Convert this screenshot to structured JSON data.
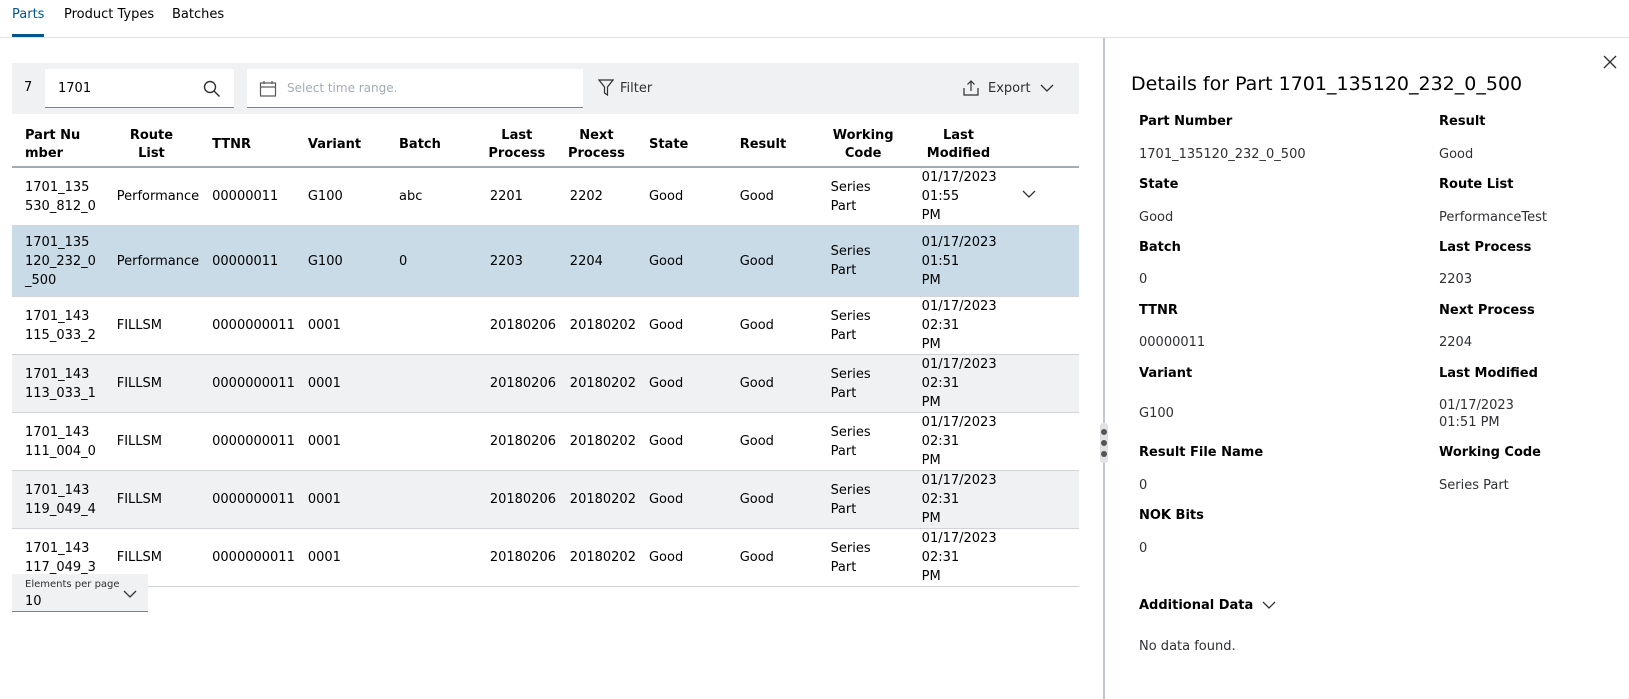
{
  "tabs": [
    {
      "label": "Parts",
      "active": true
    },
    {
      "label": "Product Types",
      "active": false
    },
    {
      "label": "Batches",
      "active": false
    }
  ],
  "toolbar": {
    "count": "7",
    "search_value": "1701",
    "date_placeholder": "Select time range.",
    "filter_label": "Filter",
    "export_label": "Export"
  },
  "table": {
    "headers": [
      "Part Nu mber",
      "Route List",
      "TTNR",
      "Variant",
      "Batch",
      "Last Process",
      "Next Process",
      "State",
      "Result",
      "Working Code",
      "Last Modified"
    ],
    "rows": [
      {
        "part": "1701_135 530_812_0",
        "route": "Performance",
        "ttnr": "00000011",
        "variant": "G100",
        "batch": "abc",
        "last": "2201",
        "next": "2202",
        "state": "Good",
        "result": "Good",
        "code": "Series Part",
        "modified": "01/17/2023 01:55 PM"
      },
      {
        "part": "1701_135 120_232_0 _500",
        "route": "Performance",
        "ttnr": "00000011",
        "variant": "G100",
        "batch": "0",
        "last": "2203",
        "next": "2204",
        "state": "Good",
        "result": "Good",
        "code": "Series Part",
        "modified": "01/17/2023 01:51 PM"
      },
      {
        "part": "1701_143 115_033_2",
        "route": "FILLSM",
        "ttnr": "0000000011",
        "variant": "0001",
        "batch": "",
        "last": "20180206",
        "next": "20180202",
        "state": "Good",
        "result": "Good",
        "code": "Series Part",
        "modified": "01/17/2023 02:31 PM"
      },
      {
        "part": "1701_143 113_033_1",
        "route": "FILLSM",
        "ttnr": "0000000011",
        "variant": "0001",
        "batch": "",
        "last": "20180206",
        "next": "20180202",
        "state": "Good",
        "result": "Good",
        "code": "Series Part",
        "modified": "01/17/2023 02:31 PM"
      },
      {
        "part": "1701_143 111_004_0",
        "route": "FILLSM",
        "ttnr": "0000000011",
        "variant": "0001",
        "batch": "",
        "last": "20180206",
        "next": "20180202",
        "state": "Good",
        "result": "Good",
        "code": "Series Part",
        "modified": "01/17/2023 02:31 PM"
      },
      {
        "part": "1701_143 119_049_4",
        "route": "FILLSM",
        "ttnr": "0000000011",
        "variant": "0001",
        "batch": "",
        "last": "20180206",
        "next": "20180202",
        "state": "Good",
        "result": "Good",
        "code": "Series Part",
        "modified": "01/17/2023 02:31 PM"
      },
      {
        "part": "1701_143 117_049_3",
        "route": "FILLSM",
        "ttnr": "0000000011",
        "variant": "0001",
        "batch": "",
        "last": "20180206",
        "next": "20180202",
        "state": "Good",
        "result": "Good",
        "code": "Series Part",
        "modified": "01/17/2023 02:31 PM"
      }
    ]
  },
  "pager": {
    "label": "Elements per page",
    "value": "10"
  },
  "details": {
    "title": "Details for Part 1701_135120_232_0_500",
    "fields": {
      "part_number_label": "Part Number",
      "part_number": "1701_135120_232_0_500",
      "result_label": "Result",
      "result": "Good",
      "state_label": "State",
      "state": "Good",
      "route_list_label": "Route List",
      "route_list": "PerformanceTest",
      "batch_label": "Batch",
      "batch": "0",
      "last_process_label": "Last Process",
      "last_process": "2203",
      "ttnr_label": "TTNR",
      "ttnr": "00000011",
      "next_process_label": "Next Process",
      "next_process": "2204",
      "variant_label": "Variant",
      "variant": "G100",
      "last_modified_label": "Last Modified",
      "last_modified_date": "01/17/2023",
      "last_modified_time": "01:51 PM",
      "result_file_label": "Result File Name",
      "result_file": "0",
      "working_code_label": "Working Code",
      "working_code": "Series Part",
      "nok_bits_label": "NOK Bits",
      "nok_bits": "0"
    },
    "additional_data_label": "Additional Data",
    "no_data": "No data found."
  },
  "colors": {
    "accent": "#005691",
    "selected_row": "#c9dbe7",
    "toolbar_bg": "#eff1f2"
  }
}
